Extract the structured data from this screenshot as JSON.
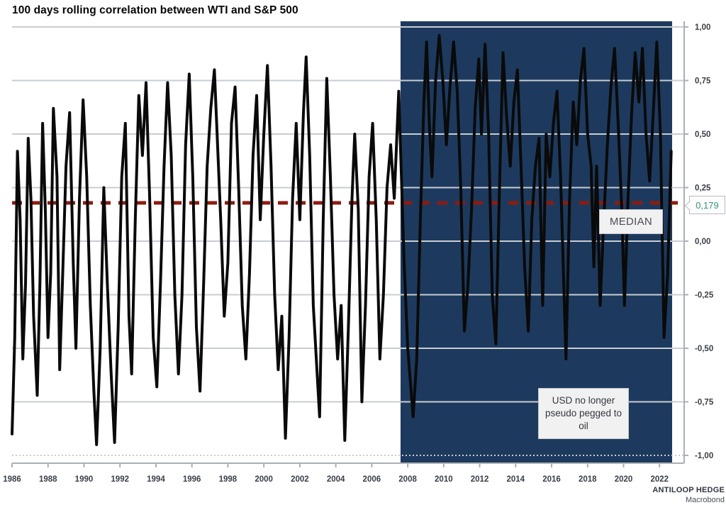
{
  "title": "100 days rolling correlation between WTI and S&P 500",
  "annotations": {
    "median_label": "MEDIAN",
    "median_callout": "0,179",
    "usd_note": "USD no longer pseudo pegged to oil"
  },
  "watermark": {
    "line1": "ANTILOOP HEDGE",
    "line2": "Macrobond"
  },
  "colors": {
    "line": "#0a0a0a",
    "shaded_region": "#1d3a5e",
    "median_line": "#8e1b10",
    "gridline": "#c9ccd1",
    "axis": "#aab0b6",
    "callout_text": "#38947e"
  },
  "chart_data": {
    "type": "line",
    "title": "100 days rolling correlation between WTI and S&P 500",
    "legend": "none",
    "grid": "on",
    "x_axis": {
      "range": [
        1986,
        2022.7
      ],
      "tick_values": [
        1986,
        1988,
        1990,
        1992,
        1994,
        1996,
        1998,
        2000,
        2002,
        2004,
        2006,
        2008,
        2010,
        2012,
        2014,
        2016,
        2018,
        2020,
        2022
      ],
      "labels": [
        "1986",
        "1988",
        "1990",
        "1992",
        "1994",
        "1996",
        "1998",
        "2000",
        "2002",
        "2004",
        "2006",
        "2008",
        "2010",
        "2012",
        "2014",
        "2016",
        "2018",
        "2020",
        "2022"
      ]
    },
    "y_axis": {
      "range": [
        -1,
        1
      ],
      "side": "right",
      "tick_values": [
        1,
        0.75,
        0.5,
        0.25,
        0,
        -0.25,
        -0.5,
        -0.75,
        -1
      ],
      "labels": [
        "1,00",
        "0,75",
        "0,50",
        "0,25",
        "0,00",
        "-0,25",
        "-0,50",
        "-0,75",
        "-1,00"
      ],
      "dotted_gridlines": [
        -1
      ]
    },
    "median_value": 0.179,
    "shaded_region": {
      "from": 2007.6,
      "to": 2022.7,
      "note": "USD no longer pseudo pegged to oil"
    },
    "series": [
      {
        "name": "100 days rolling correlation WTI vs S&P 500",
        "points": [
          [
            1986.0,
            -0.9
          ],
          [
            1986.15,
            -0.45
          ],
          [
            1986.3,
            0.42
          ],
          [
            1986.45,
            0.1
          ],
          [
            1986.6,
            -0.55
          ],
          [
            1986.75,
            -0.2
          ],
          [
            1986.9,
            0.48
          ],
          [
            1987.05,
            0.2
          ],
          [
            1987.2,
            -0.35
          ],
          [
            1987.4,
            -0.72
          ],
          [
            1987.55,
            -0.2
          ],
          [
            1987.7,
            0.55
          ],
          [
            1987.85,
            0.15
          ],
          [
            1988.0,
            -0.45
          ],
          [
            1988.15,
            -0.15
          ],
          [
            1988.3,
            0.62
          ],
          [
            1988.5,
            0.3
          ],
          [
            1988.65,
            -0.6
          ],
          [
            1988.8,
            -0.2
          ],
          [
            1989.0,
            0.35
          ],
          [
            1989.2,
            0.6
          ],
          [
            1989.4,
            -0.1
          ],
          [
            1989.55,
            -0.5
          ],
          [
            1989.75,
            0.2
          ],
          [
            1989.95,
            0.66
          ],
          [
            1990.15,
            0.3
          ],
          [
            1990.35,
            -0.3
          ],
          [
            1990.55,
            -0.7
          ],
          [
            1990.7,
            -0.95
          ],
          [
            1990.9,
            -0.5
          ],
          [
            1991.1,
            0.25
          ],
          [
            1991.3,
            -0.2
          ],
          [
            1991.5,
            -0.6
          ],
          [
            1991.7,
            -0.94
          ],
          [
            1991.9,
            -0.4
          ],
          [
            1992.1,
            0.3
          ],
          [
            1992.3,
            0.55
          ],
          [
            1992.5,
            -0.35
          ],
          [
            1992.65,
            -0.62
          ],
          [
            1992.85,
            0.1
          ],
          [
            1993.05,
            0.68
          ],
          [
            1993.25,
            0.4
          ],
          [
            1993.45,
            0.74
          ],
          [
            1993.65,
            0.2
          ],
          [
            1993.85,
            -0.45
          ],
          [
            1994.05,
            -0.68
          ],
          [
            1994.25,
            -0.2
          ],
          [
            1994.45,
            0.35
          ],
          [
            1994.65,
            0.74
          ],
          [
            1994.85,
            0.4
          ],
          [
            1995.05,
            -0.25
          ],
          [
            1995.25,
            -0.62
          ],
          [
            1995.45,
            -0.25
          ],
          [
            1995.65,
            0.45
          ],
          [
            1995.85,
            0.78
          ],
          [
            1996.05,
            0.3
          ],
          [
            1996.25,
            -0.4
          ],
          [
            1996.45,
            -0.7
          ],
          [
            1996.65,
            -0.2
          ],
          [
            1996.85,
            0.35
          ],
          [
            1997.05,
            0.62
          ],
          [
            1997.25,
            0.8
          ],
          [
            1997.45,
            0.4
          ],
          [
            1997.6,
            0.1
          ],
          [
            1997.8,
            -0.35
          ],
          [
            1998.0,
            -0.1
          ],
          [
            1998.2,
            0.55
          ],
          [
            1998.4,
            0.72
          ],
          [
            1998.6,
            0.25
          ],
          [
            1998.8,
            -0.3
          ],
          [
            1999.0,
            -0.55
          ],
          [
            1999.2,
            -0.15
          ],
          [
            1999.4,
            0.4
          ],
          [
            1999.6,
            0.68
          ],
          [
            1999.8,
            0.1
          ],
          [
            2000.0,
            0.5
          ],
          [
            2000.2,
            0.82
          ],
          [
            2000.4,
            0.35
          ],
          [
            2000.6,
            -0.25
          ],
          [
            2000.8,
            -0.6
          ],
          [
            2001.0,
            -0.35
          ],
          [
            2001.2,
            -0.92
          ],
          [
            2001.4,
            -0.45
          ],
          [
            2001.6,
            0.2
          ],
          [
            2001.8,
            0.55
          ],
          [
            2002.0,
            0.1
          ],
          [
            2002.2,
            0.6
          ],
          [
            2002.35,
            0.86
          ],
          [
            2002.55,
            0.4
          ],
          [
            2002.75,
            -0.3
          ],
          [
            2002.95,
            -0.6
          ],
          [
            2003.1,
            -0.82
          ],
          [
            2003.3,
            0.1
          ],
          [
            2003.5,
            0.76
          ],
          [
            2003.7,
            0.3
          ],
          [
            2003.9,
            -0.25
          ],
          [
            2004.1,
            -0.55
          ],
          [
            2004.3,
            -0.3
          ],
          [
            2004.5,
            -0.93
          ],
          [
            2004.7,
            -0.4
          ],
          [
            2004.9,
            0.2
          ],
          [
            2005.05,
            0.5
          ],
          [
            2005.25,
            0.15
          ],
          [
            2005.45,
            -0.75
          ],
          [
            2005.65,
            -0.3
          ],
          [
            2005.85,
            0.3
          ],
          [
            2006.05,
            0.55
          ],
          [
            2006.25,
            0.1
          ],
          [
            2006.45,
            -0.55
          ],
          [
            2006.65,
            -0.25
          ],
          [
            2006.85,
            0.25
          ],
          [
            2007.05,
            0.45
          ],
          [
            2007.25,
            0.2
          ],
          [
            2007.5,
            0.7
          ],
          [
            2007.8,
            -0.1
          ],
          [
            2008.0,
            -0.5
          ],
          [
            2008.3,
            -0.82
          ],
          [
            2008.5,
            -0.55
          ],
          [
            2008.7,
            0.1
          ],
          [
            2008.9,
            0.65
          ],
          [
            2009.05,
            0.93
          ],
          [
            2009.2,
            0.55
          ],
          [
            2009.35,
            0.3
          ],
          [
            2009.55,
            0.75
          ],
          [
            2009.75,
            0.96
          ],
          [
            2009.95,
            0.75
          ],
          [
            2010.15,
            0.45
          ],
          [
            2010.35,
            0.72
          ],
          [
            2010.55,
            0.93
          ],
          [
            2010.75,
            0.7
          ],
          [
            2010.95,
            0.25
          ],
          [
            2011.15,
            -0.42
          ],
          [
            2011.35,
            -0.2
          ],
          [
            2011.55,
            0.15
          ],
          [
            2011.75,
            0.62
          ],
          [
            2011.95,
            0.85
          ],
          [
            2012.1,
            0.5
          ],
          [
            2012.3,
            0.92
          ],
          [
            2012.5,
            0.5
          ],
          [
            2012.7,
            -0.25
          ],
          [
            2012.9,
            -0.48
          ],
          [
            2013.1,
            0.25
          ],
          [
            2013.3,
            0.88
          ],
          [
            2013.5,
            0.58
          ],
          [
            2013.7,
            0.35
          ],
          [
            2013.9,
            0.65
          ],
          [
            2014.1,
            0.8
          ],
          [
            2014.3,
            0.35
          ],
          [
            2014.5,
            -0.12
          ],
          [
            2014.7,
            -0.42
          ],
          [
            2014.9,
            0.1
          ],
          [
            2015.1,
            0.35
          ],
          [
            2015.3,
            0.48
          ],
          [
            2015.5,
            -0.3
          ],
          [
            2015.7,
            0.5
          ],
          [
            2015.9,
            0.3
          ],
          [
            2016.1,
            0.55
          ],
          [
            2016.3,
            0.7
          ],
          [
            2016.5,
            0.3
          ],
          [
            2016.8,
            -0.55
          ],
          [
            2017.0,
            0.2
          ],
          [
            2017.2,
            0.65
          ],
          [
            2017.4,
            0.45
          ],
          [
            2017.6,
            0.75
          ],
          [
            2017.8,
            0.9
          ],
          [
            2018.0,
            0.5
          ],
          [
            2018.2,
            0.35
          ],
          [
            2018.35,
            -0.12
          ],
          [
            2018.5,
            0.35
          ],
          [
            2018.7,
            -0.3
          ],
          [
            2018.9,
            0.1
          ],
          [
            2019.1,
            0.45
          ],
          [
            2019.3,
            0.72
          ],
          [
            2019.5,
            0.9
          ],
          [
            2019.7,
            0.55
          ],
          [
            2019.9,
            0.15
          ],
          [
            2020.05,
            -0.3
          ],
          [
            2020.25,
            0.2
          ],
          [
            2020.45,
            0.6
          ],
          [
            2020.65,
            0.88
          ],
          [
            2020.85,
            0.65
          ],
          [
            2021.05,
            0.9
          ],
          [
            2021.25,
            0.5
          ],
          [
            2021.45,
            0.28
          ],
          [
            2021.65,
            0.6
          ],
          [
            2021.85,
            0.93
          ],
          [
            2022.05,
            0.5
          ],
          [
            2022.25,
            -0.45
          ],
          [
            2022.45,
            -0.15
          ],
          [
            2022.65,
            0.42
          ]
        ]
      }
    ]
  }
}
